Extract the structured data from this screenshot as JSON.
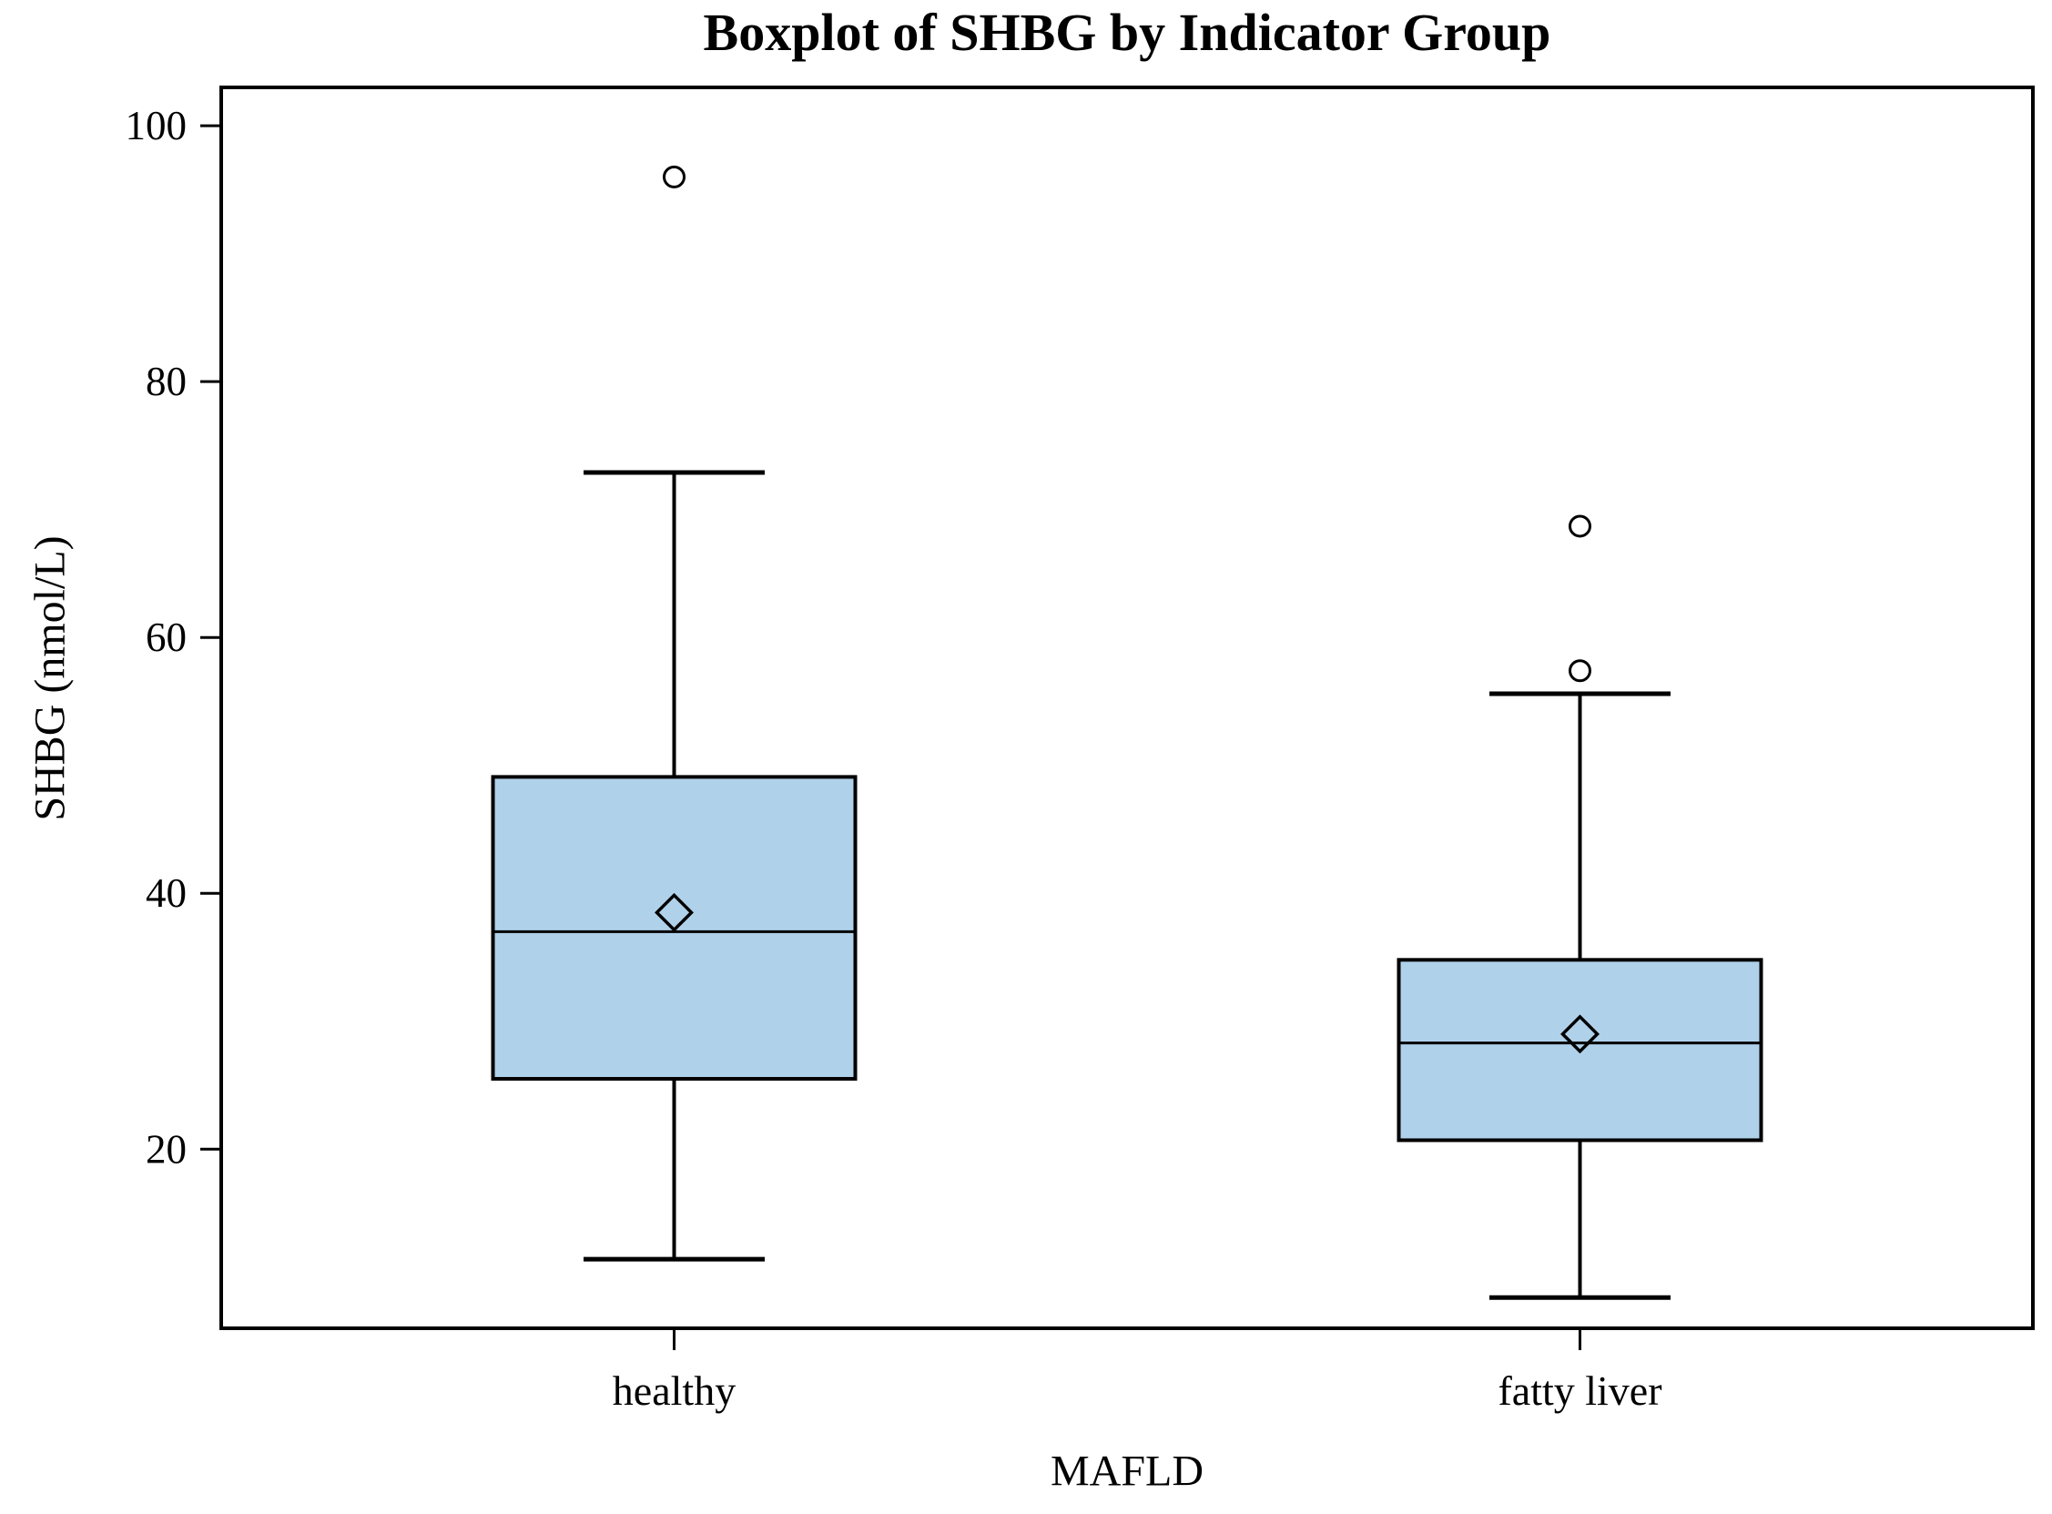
{
  "chart_data": {
    "type": "boxplot",
    "title": "Boxplot of SHBG by Indicator Group",
    "xlabel": "MAFLD",
    "ylabel": "SHBG (nmol/L)",
    "ylim": [
      6,
      103
    ],
    "y_ticks": [
      20,
      40,
      60,
      80,
      100
    ],
    "categories": [
      "healthy",
      "fatty liver"
    ],
    "grid": false,
    "legend": "none",
    "boxes": [
      {
        "group": "healthy",
        "whisker_low": 11.4,
        "q1": 25.5,
        "median": 37.0,
        "q3": 49.1,
        "whisker_high": 72.9,
        "mean": 38.5,
        "outliers": [
          96.0
        ]
      },
      {
        "group": "fatty liver",
        "whisker_low": 8.4,
        "q1": 20.7,
        "median": 28.3,
        "q3": 34.8,
        "whisker_high": 55.6,
        "mean": 29.0,
        "outliers": [
          57.4,
          68.7
        ]
      }
    ],
    "colors": {
      "box_fill": "#b0d1ea",
      "stroke": "#000000",
      "background": "#ffffff"
    }
  }
}
